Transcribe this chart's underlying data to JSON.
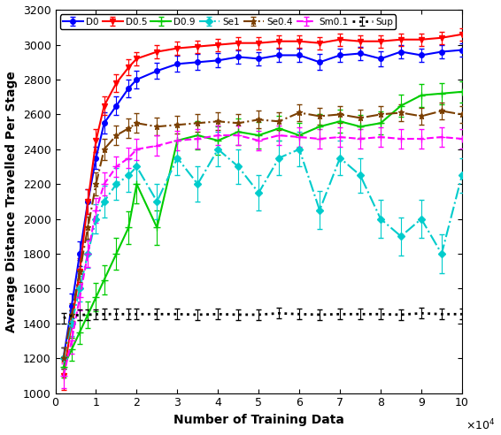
{
  "title": "",
  "xlabel": "Number of Training Data",
  "ylabel": "Average Distance Travelled Per Stage",
  "xlim": [
    0,
    100000
  ],
  "ylim": [
    1000,
    3200
  ],
  "xticks": [
    0,
    10000,
    20000,
    30000,
    40000,
    50000,
    60000,
    70000,
    80000,
    90000,
    100000
  ],
  "xticklabels": [
    "0",
    "1",
    "2",
    "3",
    "4",
    "5",
    "6",
    "7",
    "8",
    "9",
    "10"
  ],
  "yticks": [
    1000,
    1200,
    1400,
    1600,
    1800,
    2000,
    2200,
    2400,
    2600,
    2800,
    3000,
    3200
  ],
  "series": {
    "D0": {
      "color": "#0000FF",
      "linestyle": "-",
      "marker": "o",
      "markersize": 4,
      "linewidth": 1.5,
      "x": [
        2000,
        4000,
        6000,
        8000,
        10000,
        12000,
        15000,
        18000,
        20000,
        25000,
        30000,
        35000,
        40000,
        45000,
        50000,
        55000,
        60000,
        65000,
        70000,
        75000,
        80000,
        85000,
        90000,
        95000,
        100000
      ],
      "y": [
        1200,
        1500,
        1800,
        2100,
        2350,
        2550,
        2650,
        2750,
        2800,
        2850,
        2890,
        2900,
        2910,
        2930,
        2920,
        2940,
        2940,
        2900,
        2940,
        2950,
        2920,
        2960,
        2940,
        2960,
        2970
      ],
      "yerr": [
        60,
        70,
        70,
        70,
        65,
        60,
        55,
        50,
        50,
        45,
        45,
        45,
        40,
        40,
        40,
        40,
        40,
        45,
        40,
        40,
        45,
        40,
        40,
        40,
        40
      ]
    },
    "D0.5": {
      "color": "#FF0000",
      "linestyle": "-",
      "marker": "v",
      "markersize": 4,
      "linewidth": 1.5,
      "x": [
        2000,
        4000,
        6000,
        8000,
        10000,
        12000,
        15000,
        18000,
        20000,
        25000,
        30000,
        35000,
        40000,
        45000,
        50000,
        55000,
        60000,
        65000,
        70000,
        75000,
        80000,
        85000,
        90000,
        95000,
        100000
      ],
      "y": [
        1100,
        1400,
        1700,
        2100,
        2450,
        2650,
        2780,
        2870,
        2920,
        2960,
        2980,
        2990,
        3000,
        3010,
        3010,
        3020,
        3020,
        3010,
        3030,
        3020,
        3020,
        3030,
        3030,
        3040,
        3060
      ],
      "yerr": [
        80,
        80,
        75,
        70,
        65,
        55,
        50,
        45,
        40,
        38,
        36,
        35,
        35,
        35,
        35,
        35,
        35,
        35,
        35,
        35,
        35,
        35,
        35,
        35,
        35
      ]
    },
    "D0.9": {
      "color": "#00CC00",
      "linestyle": "-",
      "marker": "+",
      "markersize": 6,
      "linewidth": 1.5,
      "x": [
        2000,
        4000,
        6000,
        8000,
        10000,
        12000,
        15000,
        18000,
        20000,
        25000,
        30000,
        35000,
        40000,
        45000,
        50000,
        55000,
        60000,
        65000,
        70000,
        75000,
        80000,
        85000,
        90000,
        95000,
        100000
      ],
      "y": [
        1150,
        1250,
        1350,
        1450,
        1550,
        1650,
        1800,
        1950,
        2200,
        1950,
        2450,
        2480,
        2450,
        2500,
        2480,
        2520,
        2480,
        2530,
        2560,
        2530,
        2550,
        2650,
        2710,
        2720,
        2730
      ],
      "yerr": [
        60,
        65,
        70,
        75,
        80,
        85,
        90,
        95,
        110,
        100,
        90,
        80,
        80,
        75,
        75,
        70,
        70,
        70,
        65,
        65,
        65,
        65,
        65,
        60,
        60
      ]
    },
    "Se1": {
      "color": "#00CCCC",
      "linestyle": "-.",
      "marker": "D",
      "markersize": 4,
      "linewidth": 1.5,
      "x": [
        2000,
        4000,
        6000,
        8000,
        10000,
        12000,
        15000,
        18000,
        20000,
        25000,
        30000,
        35000,
        40000,
        45000,
        50000,
        55000,
        60000,
        65000,
        70000,
        75000,
        80000,
        85000,
        90000,
        95000,
        100000
      ],
      "y": [
        1200,
        1400,
        1600,
        1800,
        2000,
        2100,
        2200,
        2250,
        2300,
        2100,
        2350,
        2200,
        2400,
        2300,
        2150,
        2350,
        2400,
        2050,
        2350,
        2250,
        2000,
        1900,
        2000,
        1800,
        2250
      ],
      "yerr": [
        60,
        70,
        75,
        80,
        85,
        90,
        90,
        95,
        100,
        100,
        100,
        100,
        100,
        100,
        100,
        100,
        100,
        110,
        100,
        100,
        110,
        110,
        110,
        110,
        100
      ]
    },
    "Se0.4": {
      "color": "#7B3F00",
      "linestyle": "-.",
      "marker": "*",
      "markersize": 5,
      "linewidth": 1.5,
      "x": [
        2000,
        4000,
        6000,
        8000,
        10000,
        12000,
        15000,
        18000,
        20000,
        25000,
        30000,
        35000,
        40000,
        45000,
        50000,
        55000,
        60000,
        65000,
        70000,
        75000,
        80000,
        85000,
        90000,
        95000,
        100000
      ],
      "y": [
        1200,
        1450,
        1700,
        1950,
        2200,
        2400,
        2480,
        2520,
        2550,
        2530,
        2540,
        2550,
        2560,
        2550,
        2570,
        2560,
        2610,
        2590,
        2600,
        2580,
        2600,
        2610,
        2590,
        2620,
        2600
      ],
      "yerr": [
        60,
        65,
        65,
        65,
        65,
        60,
        55,
        55,
        55,
        52,
        50,
        50,
        50,
        50,
        50,
        50,
        50,
        50,
        50,
        50,
        50,
        50,
        50,
        50,
        50
      ]
    },
    "Sm0.1": {
      "color": "#FF00FF",
      "linestyle": "--",
      "marker": "+",
      "markersize": 6,
      "linewidth": 1.5,
      "x": [
        2000,
        4000,
        6000,
        8000,
        10000,
        12000,
        15000,
        18000,
        20000,
        25000,
        30000,
        35000,
        40000,
        45000,
        50000,
        55000,
        60000,
        65000,
        70000,
        75000,
        80000,
        85000,
        90000,
        95000,
        100000
      ],
      "y": [
        1100,
        1300,
        1550,
        1800,
        2050,
        2200,
        2300,
        2350,
        2400,
        2420,
        2450,
        2460,
        2480,
        2480,
        2450,
        2480,
        2470,
        2460,
        2470,
        2460,
        2470,
        2460,
        2460,
        2470,
        2460
      ],
      "yerr": [
        70,
        75,
        75,
        75,
        70,
        65,
        60,
        60,
        60,
        58,
        56,
        55,
        55,
        55,
        55,
        55,
        55,
        55,
        55,
        55,
        55,
        55,
        55,
        55,
        55
      ]
    },
    "Sup": {
      "color": "#000000",
      "linestyle": ":",
      "marker": "None",
      "markersize": 0,
      "linewidth": 2.0,
      "x": [
        2000,
        4000,
        6000,
        8000,
        10000,
        12000,
        15000,
        18000,
        20000,
        25000,
        30000,
        35000,
        40000,
        45000,
        50000,
        55000,
        60000,
        65000,
        70000,
        75000,
        80000,
        85000,
        90000,
        95000,
        100000
      ],
      "y": [
        1430,
        1445,
        1448,
        1450,
        1452,
        1453,
        1453,
        1453,
        1453,
        1453,
        1453,
        1450,
        1453,
        1450,
        1450,
        1458,
        1453,
        1450,
        1453,
        1453,
        1453,
        1450,
        1458,
        1453,
        1453
      ],
      "yerr": [
        30,
        30,
        30,
        30,
        30,
        30,
        30,
        30,
        30,
        30,
        30,
        30,
        30,
        30,
        30,
        30,
        30,
        30,
        30,
        30,
        30,
        30,
        30,
        30,
        30
      ]
    }
  },
  "legend_order": [
    "D0",
    "D0.5",
    "D0.9",
    "Se1",
    "Se0.4",
    "Sm0.1",
    "Sup"
  ]
}
